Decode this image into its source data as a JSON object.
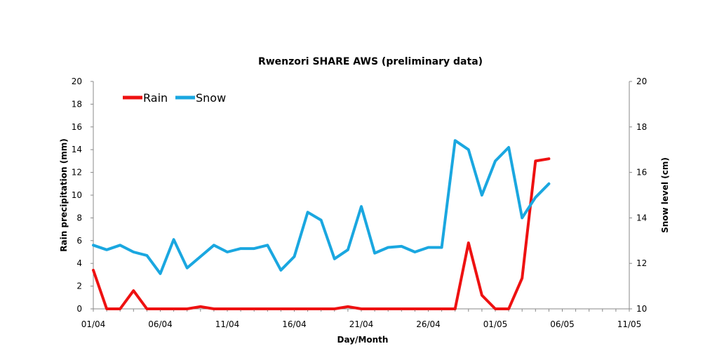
{
  "chart_data": {
    "type": "line",
    "title": "Rwenzori SHARE AWS (preliminary data)",
    "xlabel": "Day/Month",
    "ylabel": "Rain precipitation (mm)",
    "y2label": "Snow level (cm)",
    "ylim": [
      0,
      20
    ],
    "y2lim": [
      10,
      20
    ],
    "x_tick_labels": [
      "01/04",
      "06/04",
      "11/04",
      "16/04",
      "21/04",
      "26/04",
      "01/05",
      "06/05",
      "11/05"
    ],
    "y_tick_labels": [
      "0",
      "2",
      "4",
      "6",
      "8",
      "10",
      "12",
      "14",
      "16",
      "18",
      "20"
    ],
    "y2_tick_labels": [
      "10",
      "12",
      "14",
      "16",
      "18",
      "20"
    ],
    "x": [
      "01/04",
      "02/04",
      "03/04",
      "04/04",
      "05/04",
      "06/04",
      "07/04",
      "08/04",
      "09/04",
      "10/04",
      "11/04",
      "12/04",
      "13/04",
      "14/04",
      "15/04",
      "16/04",
      "17/04",
      "18/04",
      "19/04",
      "20/04",
      "21/04",
      "22/04",
      "23/04",
      "24/04",
      "25/04",
      "26/04",
      "27/04",
      "28/04",
      "29/04",
      "30/04",
      "01/05",
      "02/05",
      "03/05",
      "04/05",
      "05/05"
    ],
    "series": [
      {
        "name": "Rain",
        "axis": "left",
        "color": "#ee1111",
        "values": [
          3.4,
          0,
          0,
          1.6,
          0,
          0,
          0,
          0,
          0.2,
          0,
          0,
          0,
          0,
          0,
          0,
          0,
          0,
          0,
          0,
          0.2,
          0,
          0,
          0,
          0,
          0,
          0,
          0,
          0,
          5.8,
          1.2,
          0,
          0,
          2.7,
          13.0,
          13.2
        ]
      },
      {
        "name": "Snow",
        "axis": "right",
        "color": "#1aa7e0",
        "values": [
          12.8,
          12.6,
          12.8,
          12.5,
          12.35,
          11.55,
          13.05,
          11.8,
          12.3,
          12.8,
          12.5,
          12.65,
          12.65,
          12.8,
          11.7,
          12.3,
          14.25,
          13.9,
          12.2,
          12.6,
          14.5,
          12.45,
          12.7,
          12.75,
          12.5,
          12.7,
          12.7,
          17.4,
          17.0,
          15.0,
          16.5,
          17.1,
          14.0,
          14.9,
          15.5
        ]
      }
    ],
    "legend": "top-left",
    "grid": false
  }
}
